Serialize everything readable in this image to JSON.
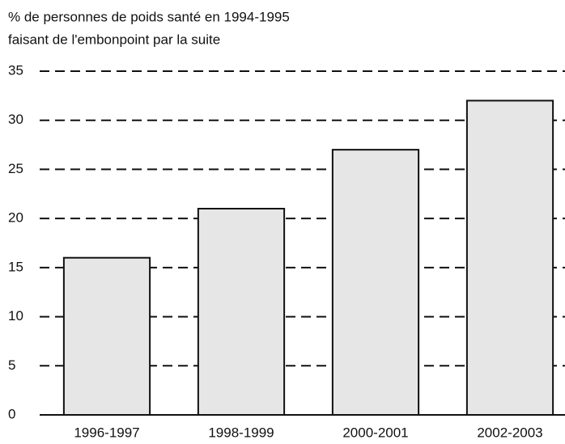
{
  "chart_data": {
    "type": "bar",
    "title": [
      "% de personnes de poids santé en 1994-1995",
      "faisant de l'embonpoint par la suite"
    ],
    "categories": [
      "1996-1997",
      "1998-1999",
      "2000-2001",
      "2002-2003"
    ],
    "values": [
      16,
      21,
      27,
      32
    ],
    "color": "#e6e6e6",
    "ylim": [
      0,
      35
    ],
    "yticks": [
      0,
      5,
      10,
      15,
      20,
      25,
      30,
      35
    ],
    "grid": true
  }
}
